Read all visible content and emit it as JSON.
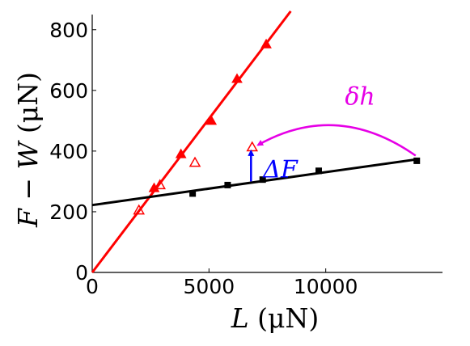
{
  "chart_data": {
    "type": "scatter",
    "xlim": [
      0,
      15000
    ],
    "ylim": [
      0,
      850
    ],
    "xticks": [
      0,
      5000,
      10000
    ],
    "yticks": [
      0,
      200,
      400,
      600,
      800
    ],
    "xtick_labels": [
      "0",
      "5000",
      "10000"
    ],
    "ytick_labels": [
      "0",
      "200",
      "400",
      "600",
      "800"
    ],
    "xlabel": "L (μN)",
    "xlabel_sym": "L",
    "xlabel_unit": " (μN)",
    "ylabel": "F − W (μN)",
    "ylabel_sym": "F − W",
    "ylabel_unit": " (μN)",
    "grid": false,
    "series": [
      {
        "marker": "triangle-filled",
        "color": "#ff0000",
        "points": [
          [
            2650,
            278
          ],
          [
            3800,
            390
          ],
          [
            5100,
            500
          ],
          [
            6200,
            638
          ],
          [
            7450,
            752
          ]
        ]
      },
      {
        "marker": "triangle-open",
        "color": "#ff0000",
        "points": [
          [
            2000,
            205
          ],
          [
            2900,
            288
          ],
          [
            4400,
            362
          ],
          [
            6850,
            413
          ]
        ]
      },
      {
        "marker": "square-filled",
        "color": "#000000",
        "points": [
          [
            4300,
            260
          ],
          [
            5800,
            288
          ],
          [
            7300,
            306
          ],
          [
            9700,
            335
          ],
          [
            13900,
            368
          ]
        ]
      }
    ],
    "fits": [
      {
        "color": "#ff0000",
        "slope": 0.1013,
        "intercept": 0,
        "x_range": [
          0,
          8500
        ]
      },
      {
        "color": "#000000",
        "slope": 0.01085,
        "intercept": 222,
        "x_range": [
          0,
          14000
        ]
      }
    ],
    "annotations": [
      {
        "text": "ΔF",
        "color": "#0000ff",
        "arrow_from": [
          6800,
          300
        ],
        "arrow_to": [
          6800,
          400
        ]
      },
      {
        "text": "δh",
        "color": "#e600e6",
        "arrow_from": [
          13850,
          385
        ],
        "arrow_to": [
          7100,
          420
        ]
      }
    ]
  }
}
